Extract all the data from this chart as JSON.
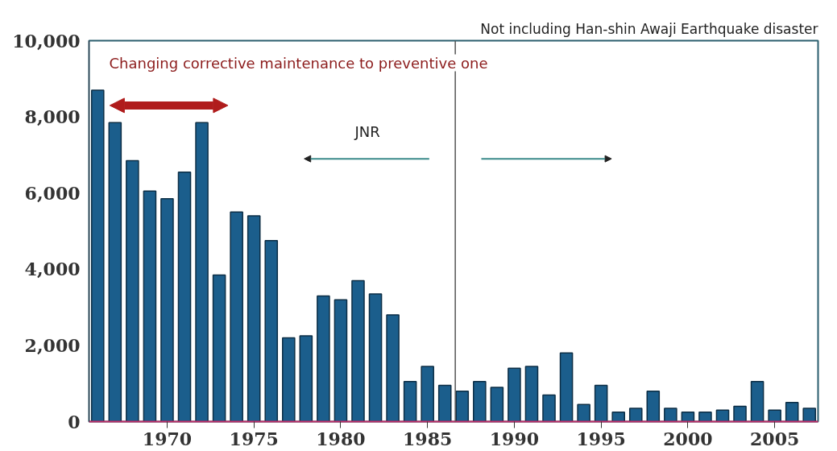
{
  "chart_data": {
    "type": "bar",
    "subtitle": "Not including Han-shin Awaji Earthquake disaster",
    "x": [
      1966,
      1967,
      1968,
      1969,
      1970,
      1971,
      1972,
      1973,
      1974,
      1975,
      1976,
      1977,
      1978,
      1979,
      1980,
      1981,
      1982,
      1983,
      1984,
      1985,
      1986,
      1987,
      1988,
      1989,
      1990,
      1991,
      1992,
      1993,
      1994,
      1995,
      1996,
      1997,
      1998,
      1999,
      2000,
      2001,
      2002,
      2003,
      2004,
      2005,
      2006,
      2007
    ],
    "values": [
      8700,
      7850,
      6850,
      6050,
      5850,
      6550,
      7850,
      3850,
      5500,
      5400,
      4750,
      2200,
      2250,
      3300,
      3200,
      3700,
      3350,
      2800,
      1050,
      1450,
      950,
      800,
      1050,
      900,
      1400,
      1450,
      700,
      1800,
      450,
      950,
      250,
      350,
      800,
      350,
      250,
      250,
      300,
      400,
      1050,
      300,
      500,
      350
    ],
    "color": "#1b5e8c",
    "xlim": [
      1965.5,
      2007.5
    ],
    "xticks": [
      1970,
      1975,
      1980,
      1985,
      1990,
      1995,
      2000,
      2005
    ],
    "ylim": [
      0,
      10000
    ],
    "yticks": [
      0,
      {
        "value": 2000,
        "label": "2,000"
      },
      {
        "value": 4000,
        "label": "4,000"
      },
      {
        "value": 6000,
        "label": "6,000"
      },
      {
        "value": 8000,
        "label": "8,000"
      },
      {
        "value": 10000,
        "label": "10,000"
      }
    ],
    "grid": false,
    "ref_lines": [
      {
        "axis": "x",
        "value": 1986.6,
        "color": "#555555"
      }
    ],
    "annotations": [
      "Changing  corrective maintenance to preventive one",
      "JNR"
    ]
  }
}
